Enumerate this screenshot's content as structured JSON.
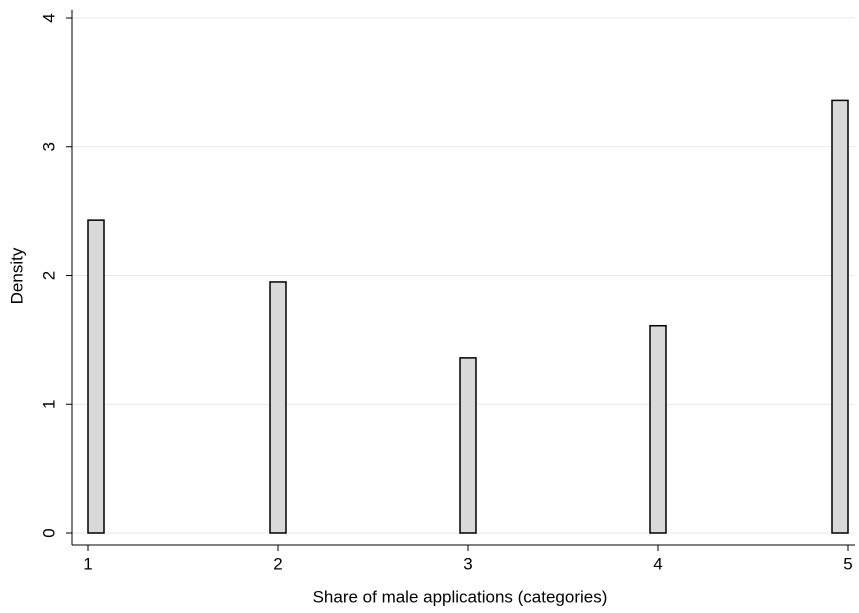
{
  "chart_data": {
    "type": "bar",
    "x_label": "Share of male applications (categories)",
    "y_label": "Density",
    "x": [
      1,
      2,
      3,
      4,
      5
    ],
    "values": [
      2.43,
      1.95,
      1.36,
      1.61,
      3.36
    ],
    "color": "#d9d9d9",
    "xlim": [
      1,
      5
    ],
    "xticks": [
      1,
      2,
      3,
      4,
      5
    ],
    "ylim": [
      0,
      4
    ],
    "yticks": [
      0,
      1,
      2,
      3,
      4
    ],
    "grid": true
  }
}
